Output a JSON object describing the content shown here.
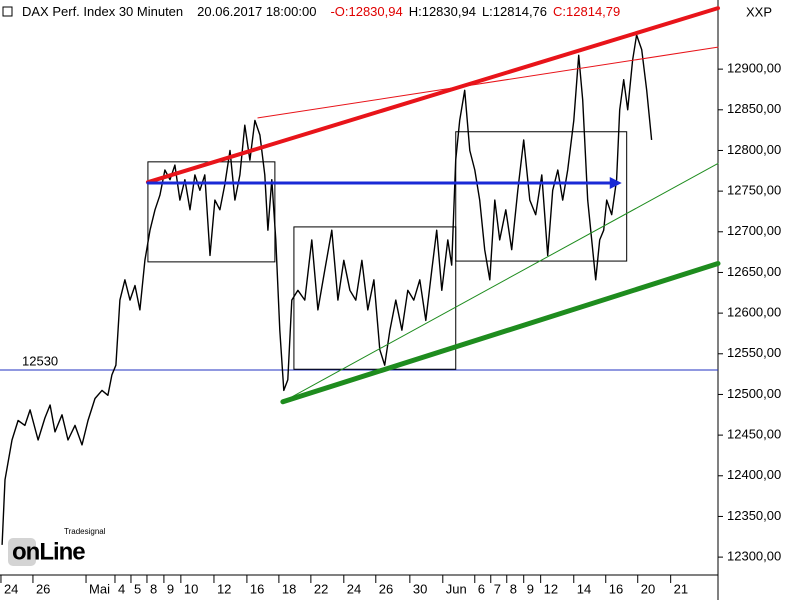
{
  "chart_data": {
    "type": "line",
    "title": "DAX Perf. Index 30 Minuten",
    "timestamp": "20.06.2017 18:00:00",
    "ohlc": [
      "-O:12830,94",
      "H:12830,94",
      "L:12814,76",
      "C:12814,79"
    ],
    "ohlc_colors": [
      "#e00000",
      "#000000",
      "#000000",
      "#e00000"
    ],
    "symbol": "XXP",
    "watermark": [
      "Tradesignal",
      "onLine"
    ],
    "series": [
      {
        "name": "DAX Perf. Index",
        "color": "#000000",
        "x": [
          0.13,
          0.31,
          0.75,
          1.13,
          1.56,
          1.88,
          2.38,
          2.81,
          3.13,
          3.44,
          3.88,
          4.25,
          4.69,
          5.13,
          5.5,
          5.94,
          6.38,
          6.75,
          7,
          7.25,
          7.5,
          7.81,
          8.13,
          8.44,
          8.75,
          9.06,
          9.38,
          9.69,
          10,
          10.31,
          10.63,
          10.94,
          11.25,
          11.56,
          11.88,
          12.19,
          12.5,
          12.81,
          13.13,
          13.44,
          13.75,
          14.06,
          14.38,
          14.69,
          15,
          15.31,
          15.63,
          15.94,
          16.25,
          16.56,
          16.75,
          17,
          17.25,
          17.5,
          17.75,
          18,
          18.25,
          18.63,
          19.06,
          19.5,
          19.88,
          20.31,
          20.75,
          21.13,
          21.5,
          21.88,
          22.25,
          22.63,
          23,
          23.38,
          23.75,
          24.06,
          24.38,
          24.75,
          25.13,
          25.5,
          25.88,
          26.25,
          26.63,
          27,
          27.31,
          27.63,
          28,
          28.25,
          28.5,
          28.75,
          29.06,
          29.38,
          29.69,
          30,
          30.31,
          30.63,
          30.94,
          31.25,
          31.63,
          32,
          32.38,
          32.75,
          33.13,
          33.5,
          33.88,
          34.25,
          34.56,
          34.88,
          35.19,
          35.5,
          35.88,
          36.19,
          36.44,
          36.75,
          37,
          37.25,
          37.5,
          37.75,
          37.94,
          38.25,
          38.56,
          38.75,
          39,
          39.25,
          39.56,
          39.81,
          40.13,
          40.44,
          40.75
        ],
        "values": [
          12315,
          12395,
          12444,
          12468,
          12462,
          12481,
          12444,
          12471,
          12487,
          12454,
          12475,
          12444,
          12462,
          12438,
          12468,
          12495,
          12505,
          12499,
          12524,
          12536,
          12616,
          12641,
          12616,
          12634,
          12604,
          12665,
          12702,
          12727,
          12745,
          12776,
          12764,
          12782,
          12739,
          12764,
          12727,
          12770,
          12751,
          12770,
          12671,
          12739,
          12727,
          12758,
          12800,
          12739,
          12770,
          12831,
          12788,
          12837,
          12819,
          12770,
          12702,
          12764,
          12690,
          12579,
          12505,
          12518,
          12616,
          12628,
          12616,
          12690,
          12604,
          12653,
          12702,
          12616,
          12665,
          12628,
          12616,
          12665,
          12604,
          12641,
          12555,
          12536,
          12579,
          12616,
          12579,
          12628,
          12616,
          12641,
          12591,
          12653,
          12702,
          12628,
          12690,
          12659,
          12788,
          12837,
          12874,
          12800,
          12776,
          12739,
          12678,
          12641,
          12739,
          12690,
          12727,
          12678,
          12751,
          12813,
          12739,
          12721,
          12770,
          12671,
          12751,
          12776,
          12739,
          12776,
          12837,
          12917,
          12862,
          12739,
          12690,
          12641,
          12690,
          12702,
          12739,
          12721,
          12764,
          12850,
          12887,
          12850,
          12911,
          12942,
          12924,
          12874,
          12813
        ]
      }
    ],
    "trendlines": [
      {
        "x": [
          9.25,
          44.9
        ],
        "y": [
          12761,
          12975
        ],
        "color": "#e8141a",
        "width": 4
      },
      {
        "x": [
          16.13,
          44.9
        ],
        "y": [
          12840,
          12927
        ],
        "color": "#e8141a",
        "width": 1
      },
      {
        "x": [
          17.69,
          44.9
        ],
        "y": [
          12491,
          12661
        ],
        "color": "#1e8c1e",
        "width": 5
      },
      {
        "x": [
          17.69,
          44.9
        ],
        "y": [
          12491,
          12784
        ],
        "color": "#1e8c1e",
        "width": 1
      },
      {
        "x": [
          9.25,
          38.63
        ],
        "y": [
          12760,
          12760
        ],
        "color": "#1a2ad6",
        "width": 3
      }
    ],
    "boxes": [
      {
        "x": [
          9.25,
          17.19
        ],
        "y": [
          12663,
          12786
        ]
      },
      {
        "x": [
          18.38,
          28.5
        ],
        "y": [
          12531,
          12706
        ]
      },
      {
        "x": [
          28.5,
          39.19
        ],
        "y": [
          12664,
          12823
        ]
      }
    ],
    "hline": {
      "value": 12530,
      "color": "#2030c0"
    },
    "xlim": [
      0,
      44.9
    ],
    "ylim": [
      12278,
      12985
    ],
    "yticks": [
      {
        "value": 12300,
        "label": "12300,00"
      },
      {
        "value": 12350,
        "label": "12350,00"
      },
      {
        "value": 12400,
        "label": "12400,00"
      },
      {
        "value": 12450,
        "label": "12450,00"
      },
      {
        "value": 12500,
        "label": "12500,00"
      },
      {
        "value": 12550,
        "label": "12550,00"
      },
      {
        "value": 12600,
        "label": "12600,00"
      },
      {
        "value": 12650,
        "label": "12650,00"
      },
      {
        "value": 12700,
        "label": "12700,00"
      },
      {
        "value": 12750,
        "label": "12750,00"
      },
      {
        "value": 12800,
        "label": "12800,00"
      },
      {
        "value": 12850,
        "label": "12850,00"
      },
      {
        "value": 12900,
        "label": "12900,00"
      }
    ],
    "xticks": [
      {
        "value": 0.06,
        "label": "24"
      },
      {
        "value": 2.06,
        "label": "26"
      },
      {
        "value": 5.38,
        "label": "Mai"
      },
      {
        "value": 7.19,
        "label": "4"
      },
      {
        "value": 8.19,
        "label": "5"
      },
      {
        "value": 9.19,
        "label": "8"
      },
      {
        "value": 10.25,
        "label": "9"
      },
      {
        "value": 11.31,
        "label": "10"
      },
      {
        "value": 13.38,
        "label": "12"
      },
      {
        "value": 15.44,
        "label": "16"
      },
      {
        "value": 17.44,
        "label": "18"
      },
      {
        "value": 19.44,
        "label": "22"
      },
      {
        "value": 21.5,
        "label": "24"
      },
      {
        "value": 23.5,
        "label": "26"
      },
      {
        "value": 25.63,
        "label": "30"
      },
      {
        "value": 27.69,
        "label": "Jun"
      },
      {
        "value": 29.69,
        "label": "6"
      },
      {
        "value": 30.69,
        "label": "7"
      },
      {
        "value": 31.69,
        "label": "8"
      },
      {
        "value": 32.75,
        "label": "9"
      },
      {
        "value": 33.81,
        "label": "12"
      },
      {
        "value": 35.88,
        "label": "14"
      },
      {
        "value": 37.88,
        "label": "16"
      },
      {
        "value": 39.88,
        "label": "20"
      },
      {
        "value": 41.94,
        "label": "21"
      }
    ]
  }
}
